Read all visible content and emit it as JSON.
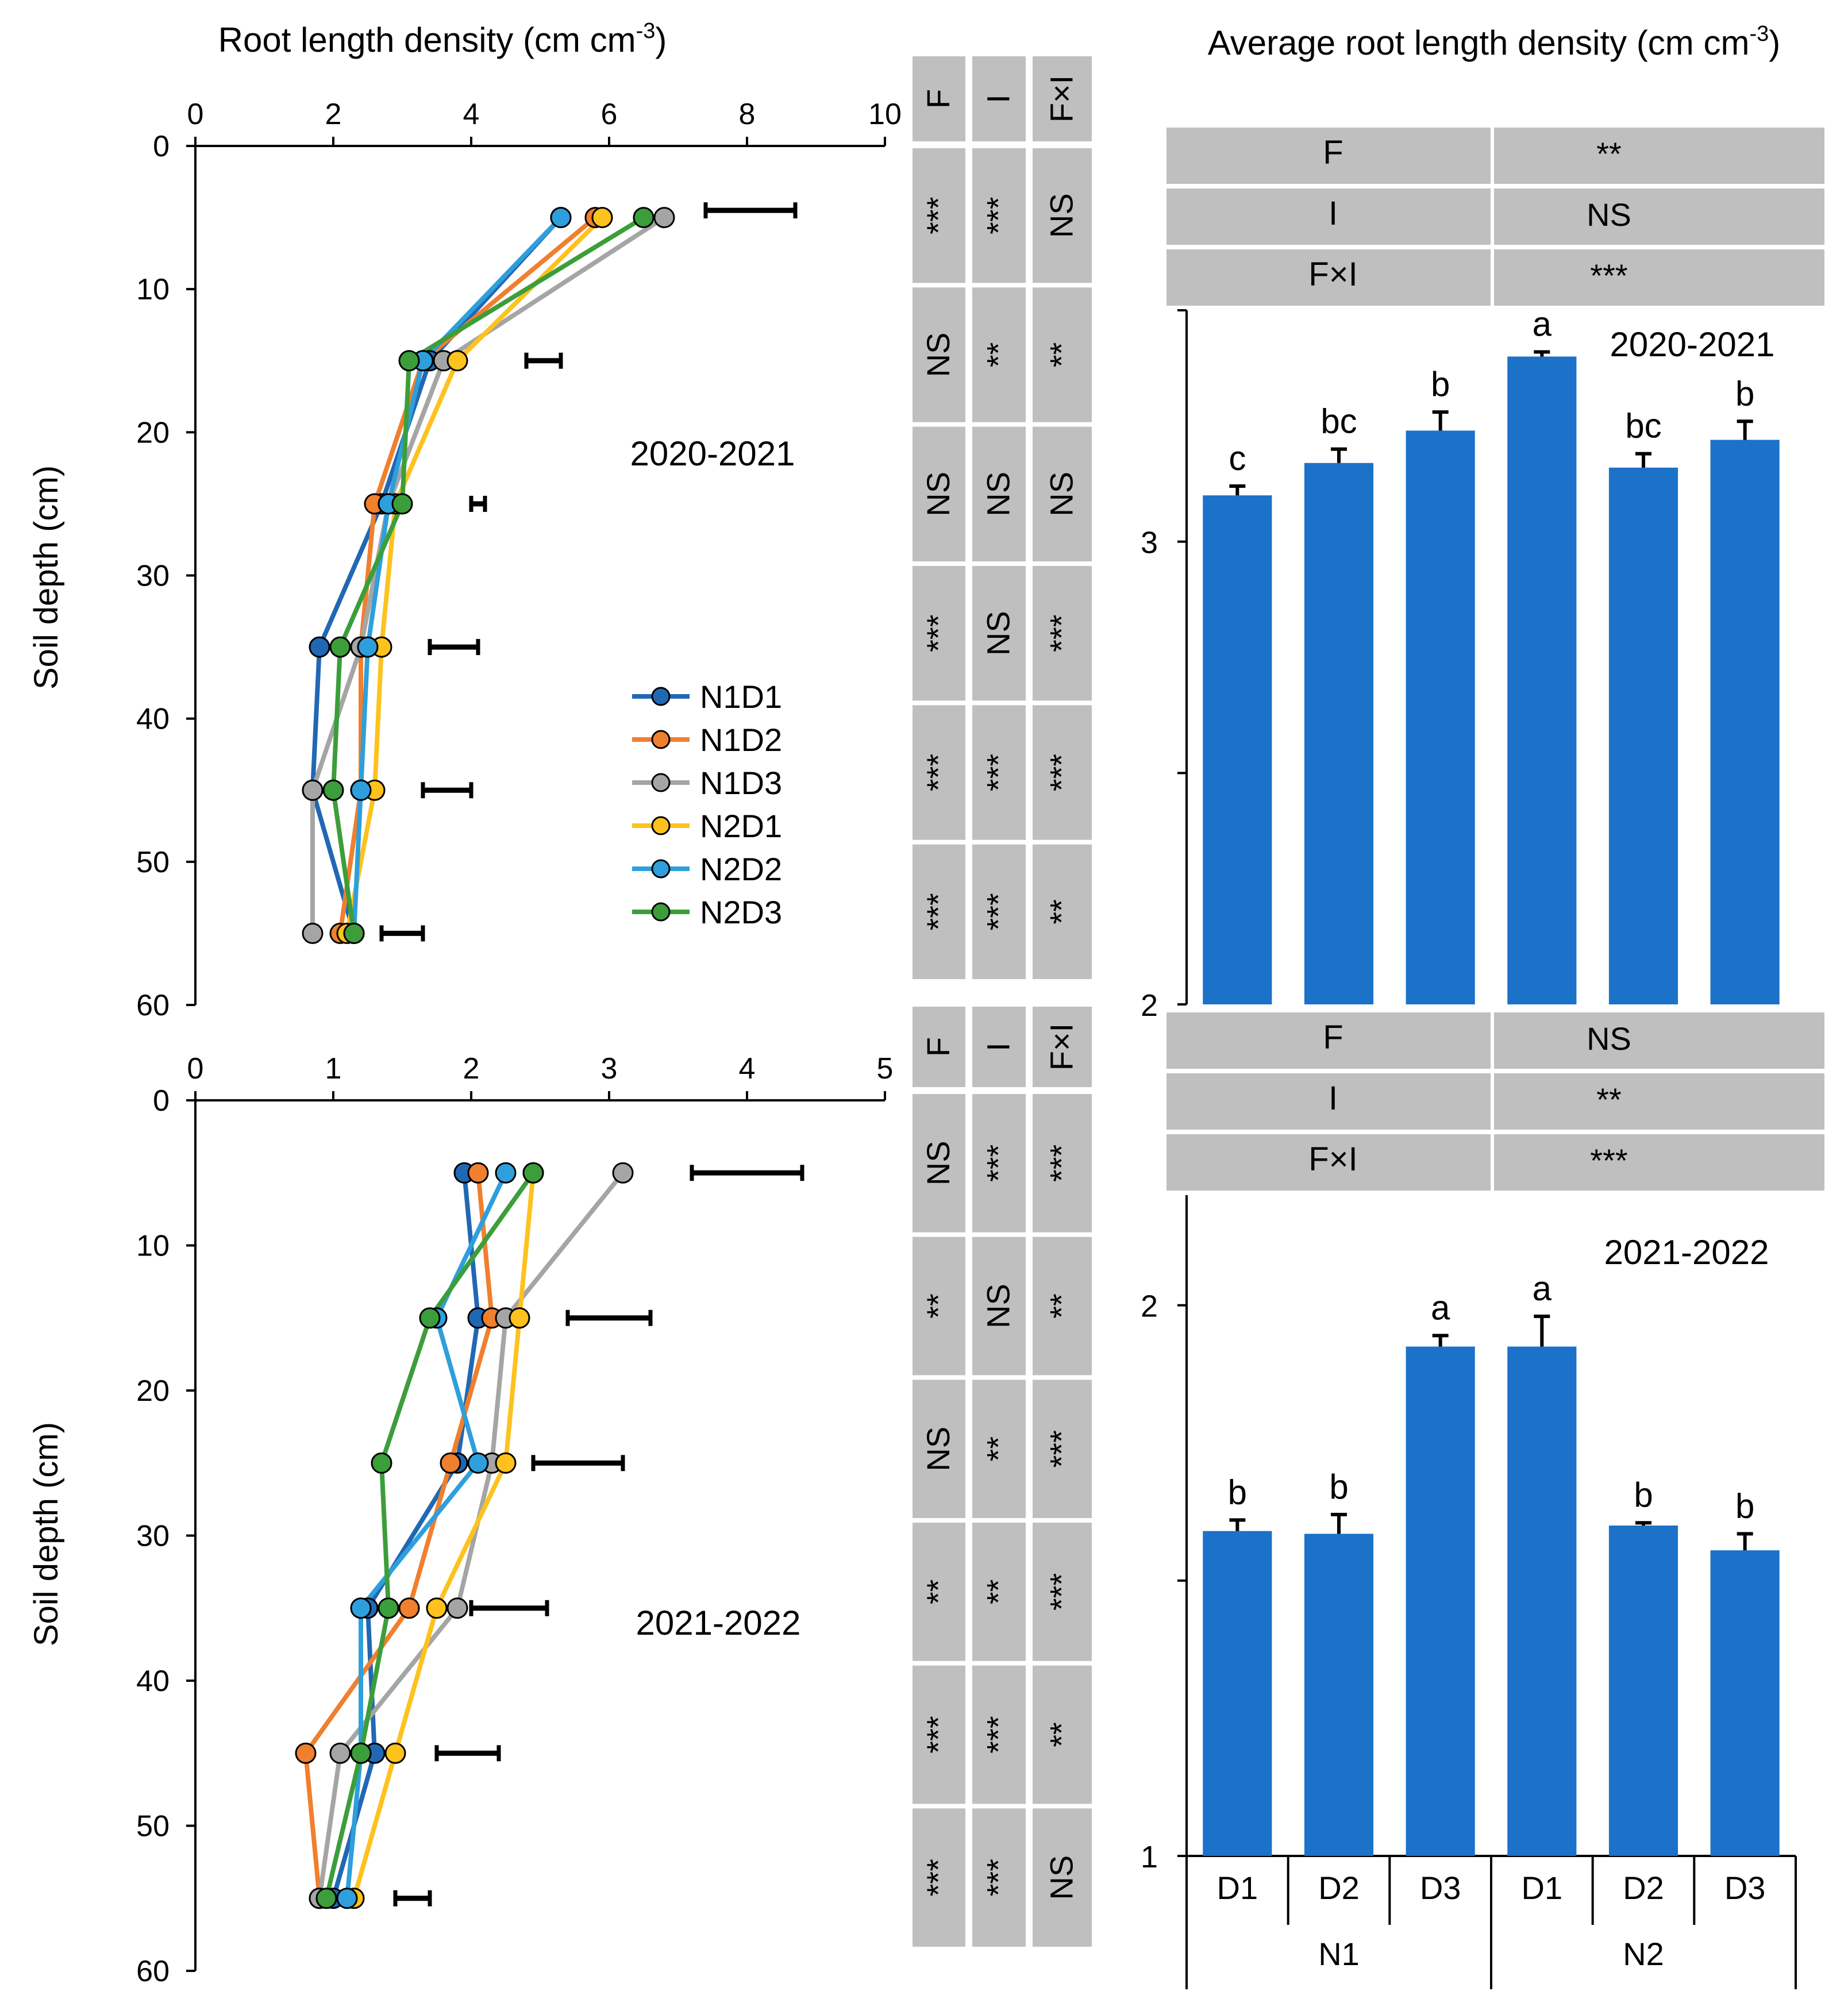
{
  "chart_data": [
    {
      "type": "line",
      "title": "2020-2021",
      "xlabel_pre": "Root length density (cm cm",
      "xlabel_sup": "-3",
      "xlabel_post": ")",
      "ylabel": "Soil depth (cm)",
      "xlim": [
        0,
        10
      ],
      "xticks": [
        0,
        2,
        4,
        6,
        8,
        10
      ],
      "ylim": [
        0,
        60
      ],
      "yticks": [
        0,
        10,
        20,
        30,
        40,
        50,
        60
      ],
      "depths": [
        5,
        15,
        25,
        35,
        45,
        55
      ],
      "series": [
        {
          "name": "N1D1",
          "color": "#2168b4",
          "values": [
            5.3,
            3.4,
            2.7,
            1.8,
            1.7,
            2.3
          ]
        },
        {
          "name": "N1D2",
          "color": "#f07f2e",
          "values": [
            5.8,
            3.3,
            2.6,
            2.4,
            2.4,
            2.1
          ]
        },
        {
          "name": "N1D3",
          "color": "#a5a5a5",
          "values": [
            6.8,
            3.6,
            2.8,
            2.4,
            1.7,
            1.7
          ]
        },
        {
          "name": "N2D1",
          "color": "#fdc21d",
          "values": [
            5.9,
            3.8,
            2.9,
            2.7,
            2.6,
            2.2
          ]
        },
        {
          "name": "N2D2",
          "color": "#2e9fdc",
          "values": [
            5.3,
            3.3,
            2.8,
            2.5,
            2.4,
            2.3
          ]
        },
        {
          "name": "N2D3",
          "color": "#3c9e3a",
          "values": [
            6.5,
            3.1,
            3.0,
            2.1,
            2.0,
            2.3
          ]
        }
      ],
      "error_bars": [
        {
          "depth": 4.5,
          "from": 7.4,
          "to": 8.7
        },
        {
          "depth": 15,
          "from": 4.8,
          "to": 5.3
        },
        {
          "depth": 25,
          "from": 4.0,
          "to": 4.2
        },
        {
          "depth": 35,
          "from": 3.4,
          "to": 4.1
        },
        {
          "depth": 45,
          "from": 3.3,
          "to": 4.0
        },
        {
          "depth": 55,
          "from": 2.7,
          "to": 3.3
        }
      ],
      "sig_headers": [
        "F",
        "I",
        "F×I"
      ],
      "sig_rows": [
        [
          "***",
          "***",
          "NS"
        ],
        [
          "NS",
          "**",
          "**"
        ],
        [
          "NS",
          "NS",
          "NS"
        ],
        [
          "***",
          "NS",
          "***"
        ],
        [
          "***",
          "***",
          "***"
        ],
        [
          "***",
          "***",
          "**"
        ]
      ]
    },
    {
      "type": "line",
      "title": "2021-2022",
      "ylabel": "Soil depth (cm)",
      "xlim": [
        0,
        5
      ],
      "xticks": [
        0,
        1,
        2,
        3,
        4,
        5
      ],
      "ylim": [
        0,
        60
      ],
      "yticks": [
        0,
        10,
        20,
        30,
        40,
        50,
        60
      ],
      "depths": [
        5,
        15,
        25,
        35,
        45,
        55
      ],
      "series": [
        {
          "name": "N1D1",
          "color": "#2168b4",
          "values": [
            1.95,
            2.05,
            1.9,
            1.25,
            1.3,
            1.0
          ]
        },
        {
          "name": "N1D2",
          "color": "#f07f2e",
          "values": [
            2.05,
            2.15,
            1.85,
            1.55,
            0.8,
            0.9
          ]
        },
        {
          "name": "N1D3",
          "color": "#a5a5a5",
          "values": [
            3.1,
            2.25,
            2.15,
            1.9,
            1.05,
            0.9
          ]
        },
        {
          "name": "N2D1",
          "color": "#fdc21d",
          "values": [
            2.45,
            2.35,
            2.25,
            1.75,
            1.45,
            1.15
          ]
        },
        {
          "name": "N2D2",
          "color": "#2e9fdc",
          "values": [
            2.25,
            1.75,
            2.05,
            1.2,
            1.2,
            1.1
          ]
        },
        {
          "name": "N2D3",
          "color": "#3c9e3a",
          "values": [
            2.45,
            1.7,
            1.35,
            1.4,
            1.2,
            0.95
          ]
        }
      ],
      "error_bars": [
        {
          "depth": 5,
          "from": 3.6,
          "to": 4.4
        },
        {
          "depth": 15,
          "from": 2.7,
          "to": 3.3
        },
        {
          "depth": 25,
          "from": 2.45,
          "to": 3.1
        },
        {
          "depth": 35,
          "from": 2.0,
          "to": 2.55
        },
        {
          "depth": 45,
          "from": 1.75,
          "to": 2.2
        },
        {
          "depth": 55,
          "from": 1.45,
          "to": 1.7
        }
      ],
      "sig_headers": [
        "F",
        "I",
        "F×I"
      ],
      "sig_rows": [
        [
          "NS",
          "***",
          "***"
        ],
        [
          "**",
          "NS",
          "**"
        ],
        [
          "NS",
          "**",
          "***"
        ],
        [
          "**",
          "**",
          "***"
        ],
        [
          "***",
          "***",
          "**"
        ],
        [
          "***",
          "***",
          "NS"
        ]
      ]
    },
    {
      "type": "bar",
      "title": "2020-2021",
      "ylabel_pre": "Average root length density (cm cm",
      "ylabel_sup": "-3",
      "ylabel_post": ")",
      "ylim": [
        2,
        3.5
      ],
      "ytick_labels": [
        {
          "value": 2,
          "label": "2"
        },
        {
          "value": 3,
          "label": "3"
        }
      ],
      "categories": [
        "N1D1",
        "N1D2",
        "N1D3",
        "N2D1",
        "N2D2",
        "N2D3"
      ],
      "values": [
        3.1,
        3.17,
        3.24,
        3.4,
        3.16,
        3.22
      ],
      "errors": [
        0.02,
        0.03,
        0.04,
        0.01,
        0.03,
        0.04
      ],
      "letters": [
        "c",
        "bc",
        "b",
        "a",
        "bc",
        "b"
      ],
      "anova": [
        {
          "factor": "F",
          "sig": "**"
        },
        {
          "factor": "I",
          "sig": "NS"
        },
        {
          "factor": "F×I",
          "sig": "***"
        }
      ]
    },
    {
      "type": "bar",
      "title": "2021-2022",
      "ylim": [
        1,
        2.2
      ],
      "ytick_labels": [
        {
          "value": 1,
          "label": "1"
        },
        {
          "value": 2,
          "label": "2"
        }
      ],
      "categories": [
        "N1D1",
        "N1D2",
        "N1D3",
        "N2D1",
        "N2D2",
        "N2D3"
      ],
      "values": [
        1.59,
        1.585,
        1.925,
        1.925,
        1.6,
        1.555
      ],
      "errors": [
        0.02,
        0.035,
        0.02,
        0.055,
        0.005,
        0.03
      ],
      "letters": [
        "b",
        "b",
        "a",
        "a",
        "b",
        "b"
      ],
      "anova": [
        {
          "factor": "F",
          "sig": "NS"
        },
        {
          "factor": "I",
          "sig": "**"
        },
        {
          "factor": "F×I",
          "sig": "***"
        }
      ],
      "x_sub": [
        "D1",
        "D2",
        "D3",
        "D1",
        "D2",
        "D3"
      ],
      "x_groups": [
        "N1",
        "N2"
      ]
    }
  ]
}
